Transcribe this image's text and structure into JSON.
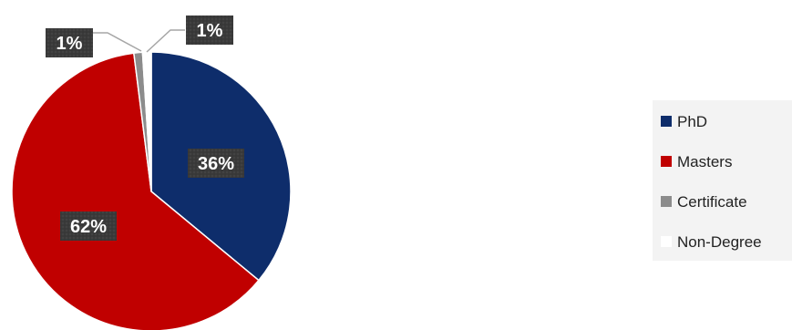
{
  "chart_data": {
    "type": "pie",
    "title": "",
    "slices": [
      {
        "category": "PhD",
        "value": 36,
        "label": "36%",
        "color": "#0e2d6b"
      },
      {
        "category": "Masters",
        "value": 62,
        "label": "62%",
        "color": "#c00000"
      },
      {
        "category": "Certificate",
        "value": 1,
        "label": "1%",
        "color": "#8c8c8c"
      },
      {
        "category": "Non-Degree",
        "value": 1,
        "label": "1%",
        "color": "#ffffff"
      }
    ],
    "label_style": {
      "box_color": "#3a3a3a",
      "text_color": "#ffffff"
    },
    "legend": {
      "position": "right",
      "background": "#f3f3f3"
    }
  }
}
